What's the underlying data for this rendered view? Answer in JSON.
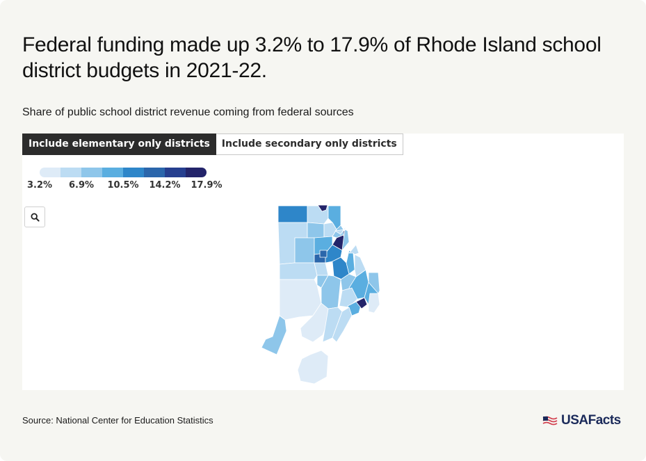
{
  "header": {
    "title": "Federal funding made up 3.2% to 17.9% of Rhode Island school district budgets in 2021-22.",
    "subtitle": "Share of public school district revenue coming from federal sources"
  },
  "tabs": [
    {
      "label": "Include elementary only districts",
      "active": true
    },
    {
      "label": "Include secondary only districts",
      "active": false
    }
  ],
  "legend": {
    "labels": [
      "3.2%",
      "6.9%",
      "10.5%",
      "14.2%",
      "17.9%"
    ],
    "colors": [
      "#deebf7",
      "#bcdcf3",
      "#8ec6ea",
      "#5aaee0",
      "#2e86c9",
      "#2b66ab",
      "#263f8f",
      "#23246a"
    ]
  },
  "zoom": {
    "icon": "search-icon"
  },
  "footer": {
    "source": "Source: National Center for Education Statistics",
    "brand": "USAFacts",
    "brand_icon": "usa-flag-icon"
  },
  "chart_data": {
    "type": "choropleth",
    "region": "Rhode Island",
    "metric": "Share of public school district revenue coming from federal sources",
    "range": [
      3.2,
      17.9
    ],
    "scale_ticks": [
      3.2,
      6.9,
      10.5,
      14.2,
      17.9
    ]
  }
}
